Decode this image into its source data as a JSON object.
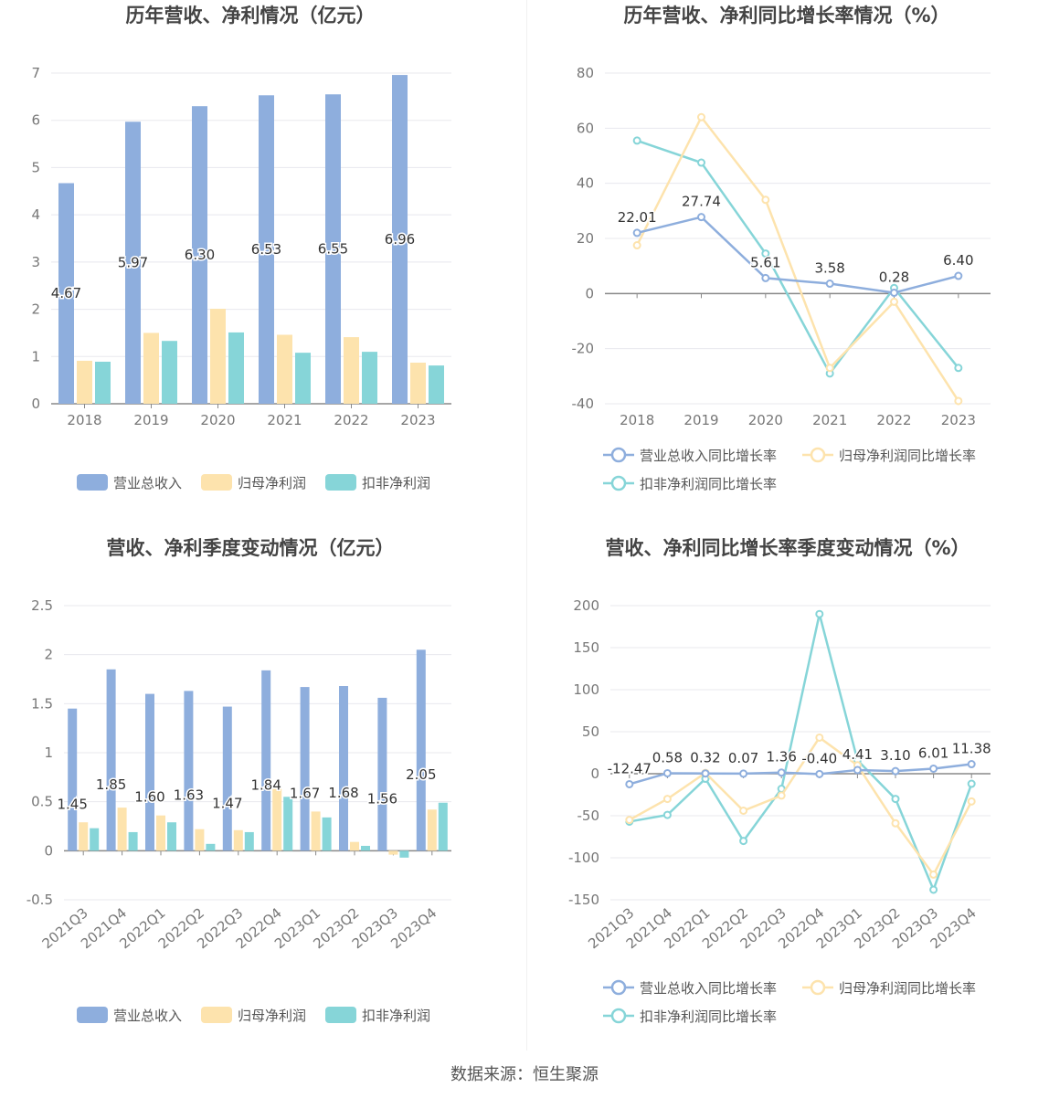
{
  "colors": {
    "revenue": "#8eaedd",
    "net_profit": "#fde3ad",
    "deducted_profit": "#86d5d8",
    "axis_text": "#777777",
    "grid": "#e8e8ee",
    "title": "#444444"
  },
  "footer": {
    "source": "数据来源：恒生聚源"
  },
  "chart_data": [
    {
      "type": "bar",
      "title": "历年营收、净利情况（亿元）",
      "categories": [
        "2018",
        "2019",
        "2020",
        "2021",
        "2022",
        "2023"
      ],
      "ylim": [
        0,
        7
      ],
      "yticks": [
        0,
        1,
        2,
        3,
        4,
        5,
        6,
        7
      ],
      "grid": true,
      "legend_position": "bottom",
      "series": [
        {
          "name": "营业总收入",
          "values": [
            4.67,
            5.97,
            6.3,
            6.53,
            6.55,
            6.96
          ],
          "labels": [
            "4.67",
            "5.97",
            "6.30",
            "6.53",
            "6.55",
            "6.96"
          ]
        },
        {
          "name": "归母净利润",
          "values": [
            0.91,
            1.5,
            2.01,
            1.46,
            1.41,
            0.87
          ]
        },
        {
          "name": "扣非净利润",
          "values": [
            0.89,
            1.33,
            1.51,
            1.08,
            1.1,
            0.81
          ]
        }
      ]
    },
    {
      "type": "line",
      "title": "历年营收、净利同比增长率情况（%）",
      "categories": [
        "2018",
        "2019",
        "2020",
        "2021",
        "2022",
        "2023"
      ],
      "ylim": [
        -40,
        80
      ],
      "yticks": [
        -40,
        -20,
        0,
        20,
        40,
        60,
        80
      ],
      "grid": true,
      "legend_position": "bottom",
      "series": [
        {
          "name": "营业总收入同比增长率",
          "values": [
            22.01,
            27.74,
            5.61,
            3.58,
            0.28,
            6.4
          ],
          "labels": [
            "22.01",
            "27.74",
            "5.61",
            "3.58",
            "0.28",
            "6.40"
          ]
        },
        {
          "name": "归母净利润同比增长率",
          "values": [
            17.5,
            64.0,
            34.0,
            -27.0,
            -3.0,
            -39.0
          ]
        },
        {
          "name": "扣非净利润同比增长率",
          "values": [
            55.5,
            47.5,
            14.5,
            -29.0,
            2.0,
            -27.0
          ]
        }
      ]
    },
    {
      "type": "bar",
      "title": "营收、净利季度变动情况（亿元）",
      "categories": [
        "2021Q3",
        "2021Q4",
        "2022Q1",
        "2022Q2",
        "2022Q3",
        "2022Q4",
        "2023Q1",
        "2023Q2",
        "2023Q3",
        "2023Q4"
      ],
      "ylim": [
        -0.5,
        2.5
      ],
      "yticks": [
        -0.5,
        0,
        0.5,
        1,
        1.5,
        2,
        2.5
      ],
      "grid": true,
      "legend_position": "bottom",
      "series": [
        {
          "name": "营业总收入",
          "values": [
            1.45,
            1.85,
            1.6,
            1.63,
            1.47,
            1.84,
            1.67,
            1.68,
            1.56,
            2.05
          ],
          "labels": [
            "1.45",
            "1.85",
            "1.60",
            "1.63",
            "1.47",
            "1.84",
            "1.67",
            "1.68",
            "1.56",
            "2.05"
          ]
        },
        {
          "name": "归母净利润",
          "values": [
            0.29,
            0.44,
            0.36,
            0.22,
            0.21,
            0.63,
            0.4,
            0.09,
            -0.04,
            0.42
          ]
        },
        {
          "name": "扣非净利润",
          "values": [
            0.23,
            0.19,
            0.29,
            0.07,
            0.19,
            0.55,
            0.34,
            0.05,
            -0.07,
            0.49
          ]
        }
      ]
    },
    {
      "type": "line",
      "title": "营收、净利同比增长率季度变动情况（%）",
      "categories": [
        "2021Q3",
        "2021Q4",
        "2022Q1",
        "2022Q2",
        "2022Q3",
        "2022Q4",
        "2023Q1",
        "2023Q2",
        "2023Q3",
        "2023Q4"
      ],
      "ylim": [
        -150,
        200
      ],
      "yticks": [
        -150,
        -100,
        -50,
        0,
        50,
        100,
        150,
        200
      ],
      "grid": true,
      "legend_position": "bottom",
      "series": [
        {
          "name": "营业总收入同比增长率",
          "values": [
            -12.47,
            0.58,
            0.32,
            0.07,
            1.36,
            -0.4,
            4.41,
            3.1,
            6.01,
            11.38
          ],
          "labels": [
            "-12.47",
            "0.58",
            "0.32",
            "0.07",
            "1.36",
            "-0.40",
            "4.41",
            "3.10",
            "6.01",
            "11.38"
          ]
        },
        {
          "name": "归母净利润同比增长率",
          "values": [
            -55.0,
            -30.0,
            1.0,
            -44.0,
            -26.0,
            43.0,
            10.0,
            -59.0,
            -120.0,
            -33.0
          ]
        },
        {
          "name": "扣非净利润同比增长率",
          "values": [
            -57.0,
            -49.0,
            -6.0,
            -80.0,
            -18.0,
            190.0,
            16.0,
            -30.0,
            -138.0,
            -12.0
          ]
        }
      ]
    }
  ]
}
